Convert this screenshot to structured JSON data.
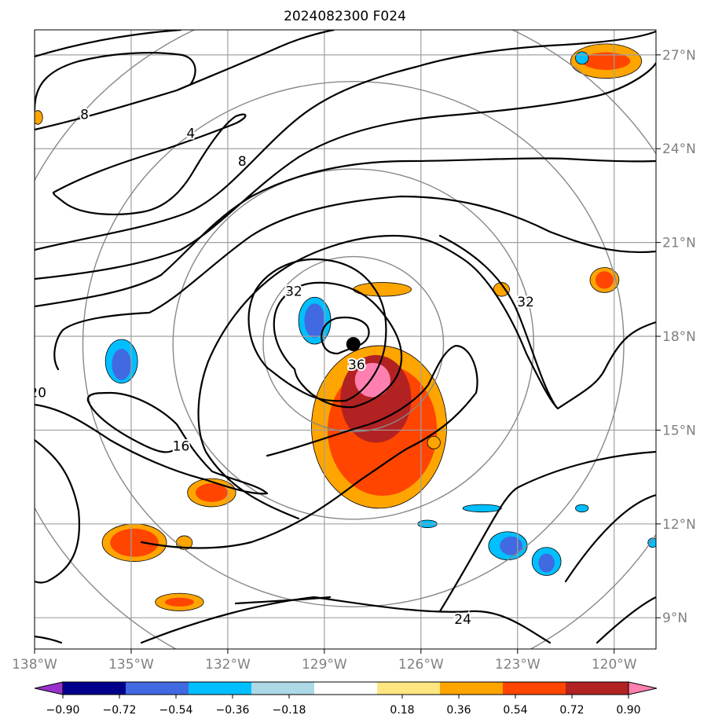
{
  "title": "2024082300 F024",
  "chart_data": {
    "type": "map",
    "title": "2024082300 F024",
    "projection": "cylindrical",
    "lon_range": [
      -138,
      -118.7
    ],
    "lat_range": [
      8,
      27.8
    ],
    "lon_ticks": [
      {
        "value": -138,
        "label": "138°W"
      },
      {
        "value": -135,
        "label": "135°W"
      },
      {
        "value": -132,
        "label": "132°W"
      },
      {
        "value": -129,
        "label": "129°W"
      },
      {
        "value": -126,
        "label": "126°W"
      },
      {
        "value": -123,
        "label": "123°W"
      },
      {
        "value": -120,
        "label": "120°W"
      }
    ],
    "lat_ticks": [
      {
        "value": 9,
        "label": "9°N"
      },
      {
        "value": 12,
        "label": "12°N"
      },
      {
        "value": 15,
        "label": "15°N"
      },
      {
        "value": 18,
        "label": "18°N"
      },
      {
        "value": 21,
        "label": "21°N"
      },
      {
        "value": 24,
        "label": "24°N"
      },
      {
        "value": 27,
        "label": "27°N"
      }
    ],
    "grid": true,
    "center": {
      "lon": -128.1,
      "lat": 17.75
    },
    "range_rings_deg": [
      2.8,
      5.6,
      8.4,
      11.2
    ],
    "colorbar": {
      "boundaries": [
        -0.9,
        -0.72,
        -0.54,
        -0.36,
        -0.18,
        0.18,
        0.36,
        0.54,
        0.72,
        0.9
      ],
      "tick_labels": [
        "−0.90",
        "−0.72",
        "−0.54",
        "−0.36",
        "−0.18",
        "0.18",
        "0.36",
        "0.54",
        "0.72",
        "0.90"
      ],
      "colors": [
        "#9932cc",
        "#00008b",
        "#4169e1",
        "#00bfff",
        "#add8e6",
        "#ffffff",
        "#ffe680",
        "#ffa500",
        "#ff4500",
        "#b22222",
        "#ff80b0"
      ],
      "extend": "both"
    },
    "contour_labels": [
      {
        "text": "4",
        "lon": -133.15,
        "lat": 24.5
      },
      {
        "text": "8",
        "lon": -136.45,
        "lat": 25.1
      },
      {
        "text": "8",
        "lon": -131.55,
        "lat": 23.6
      },
      {
        "text": "16",
        "lon": -133.45,
        "lat": 14.5
      },
      {
        "text": "20",
        "lon": -137.9,
        "lat": 16.2
      },
      {
        "text": "24",
        "lon": -124.7,
        "lat": 8.95
      },
      {
        "text": "32",
        "lon": -129.95,
        "lat": 19.45
      },
      {
        "text": "32",
        "lon": -122.75,
        "lat": 19.1
      },
      {
        "text": "36",
        "lon": -128.0,
        "lat": 17.1
      }
    ],
    "filled_regions": [
      {
        "level": 0.36,
        "lon": -127.3,
        "lat": 15.1,
        "rx": 2.1,
        "ry": 2.6
      },
      {
        "level": 0.54,
        "lon": -127.2,
        "lat": 15.0,
        "rx": 1.7,
        "ry": 2.1
      },
      {
        "level": 0.72,
        "lon": -127.4,
        "lat": 16.0,
        "rx": 1.1,
        "ry": 1.4
      },
      {
        "level": 0.9,
        "lon": -127.5,
        "lat": 16.6,
        "rx": 0.55,
        "ry": 0.55
      },
      {
        "level": 0.36,
        "lon": -120.25,
        "lat": 26.8,
        "rx": 1.1,
        "ry": 0.55
      },
      {
        "level": 0.54,
        "lon": -120.25,
        "lat": 26.8,
        "rx": 0.75,
        "ry": 0.28
      },
      {
        "level": 0.36,
        "lon": -134.9,
        "lat": 11.4,
        "rx": 1.0,
        "ry": 0.6
      },
      {
        "level": 0.54,
        "lon": -134.9,
        "lat": 11.4,
        "rx": 0.75,
        "ry": 0.45
      },
      {
        "level": 0.36,
        "lon": -132.5,
        "lat": 13.0,
        "rx": 0.75,
        "ry": 0.45
      },
      {
        "level": 0.54,
        "lon": -132.5,
        "lat": 13.0,
        "rx": 0.5,
        "ry": 0.3
      },
      {
        "level": 0.36,
        "lon": -133.5,
        "lat": 9.5,
        "rx": 0.75,
        "ry": 0.28
      },
      {
        "level": 0.54,
        "lon": -133.5,
        "lat": 9.5,
        "rx": 0.45,
        "ry": 0.14
      },
      {
        "level": 0.36,
        "lon": -127.2,
        "lat": 19.5,
        "rx": 0.9,
        "ry": 0.22
      },
      {
        "level": 0.36,
        "lon": -120.3,
        "lat": 19.8,
        "rx": 0.45,
        "ry": 0.4
      },
      {
        "level": 0.54,
        "lon": -120.3,
        "lat": 19.8,
        "rx": 0.28,
        "ry": 0.28
      },
      {
        "level": 0.36,
        "lon": -123.5,
        "lat": 19.5,
        "rx": 0.25,
        "ry": 0.22
      },
      {
        "level": 0.36,
        "lon": -125.6,
        "lat": 14.6,
        "rx": 0.2,
        "ry": 0.2
      },
      {
        "level": 0.36,
        "lon": -137.9,
        "lat": 25.0,
        "rx": 0.15,
        "ry": 0.22
      },
      {
        "level": 0.36,
        "lon": -133.35,
        "lat": 11.4,
        "rx": 0.25,
        "ry": 0.22
      },
      {
        "level": -0.36,
        "lon": -129.3,
        "lat": 18.5,
        "rx": 0.5,
        "ry": 0.75
      },
      {
        "level": -0.54,
        "lon": -129.3,
        "lat": 18.5,
        "rx": 0.32,
        "ry": 0.55
      },
      {
        "level": -0.36,
        "lon": -135.3,
        "lat": 17.2,
        "rx": 0.5,
        "ry": 0.7
      },
      {
        "level": -0.54,
        "lon": -135.3,
        "lat": 17.1,
        "rx": 0.3,
        "ry": 0.5
      },
      {
        "level": -0.36,
        "lon": -123.3,
        "lat": 11.3,
        "rx": 0.6,
        "ry": 0.45
      },
      {
        "level": -0.54,
        "lon": -123.2,
        "lat": 11.3,
        "rx": 0.35,
        "ry": 0.3
      },
      {
        "level": -0.36,
        "lon": -122.1,
        "lat": 10.8,
        "rx": 0.45,
        "ry": 0.45
      },
      {
        "level": -0.54,
        "lon": -122.1,
        "lat": 10.75,
        "rx": 0.25,
        "ry": 0.3
      },
      {
        "level": -0.36,
        "lon": -124.1,
        "lat": 12.5,
        "rx": 0.6,
        "ry": 0.12
      },
      {
        "level": -0.36,
        "lon": -125.8,
        "lat": 12.0,
        "rx": 0.3,
        "ry": 0.12
      },
      {
        "level": -0.36,
        "lon": -121.0,
        "lat": 26.9,
        "rx": 0.2,
        "ry": 0.2
      },
      {
        "level": -0.36,
        "lon": -121.0,
        "lat": 12.5,
        "rx": 0.2,
        "ry": 0.12
      },
      {
        "level": -0.36,
        "lon": -118.8,
        "lat": 11.4,
        "rx": 0.15,
        "ry": 0.15
      }
    ]
  }
}
